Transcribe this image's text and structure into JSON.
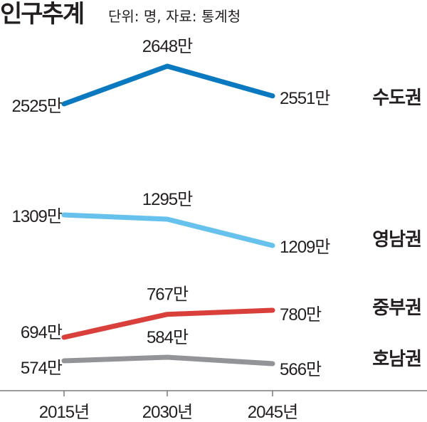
{
  "chart_data": {
    "type": "line",
    "title": "인구추계",
    "subtitle": "단위: 명, 자료: 통계청",
    "categories": [
      "2015년",
      "2030년",
      "2045년"
    ],
    "x": [
      2015,
      2030,
      2045
    ],
    "grid": false,
    "legend": "right",
    "series": [
      {
        "name": "수도권",
        "color": "#0a79bf",
        "values": [
          2525,
          2648,
          2551
        ],
        "labels": [
          "2525만",
          "2648만",
          "2551만"
        ]
      },
      {
        "name": "영남권",
        "color": "#66c2ec",
        "values": [
          1309,
          1295,
          1209
        ],
        "labels": [
          "1309만",
          "1295만",
          "1209만"
        ]
      },
      {
        "name": "중부권",
        "color": "#d9403b",
        "values": [
          694,
          767,
          780
        ],
        "labels": [
          "694만",
          "767만",
          "780만"
        ]
      },
      {
        "name": "호남권",
        "color": "#929497",
        "values": [
          574,
          584,
          566
        ],
        "labels": [
          "574만",
          "584만",
          "566만"
        ]
      }
    ]
  }
}
